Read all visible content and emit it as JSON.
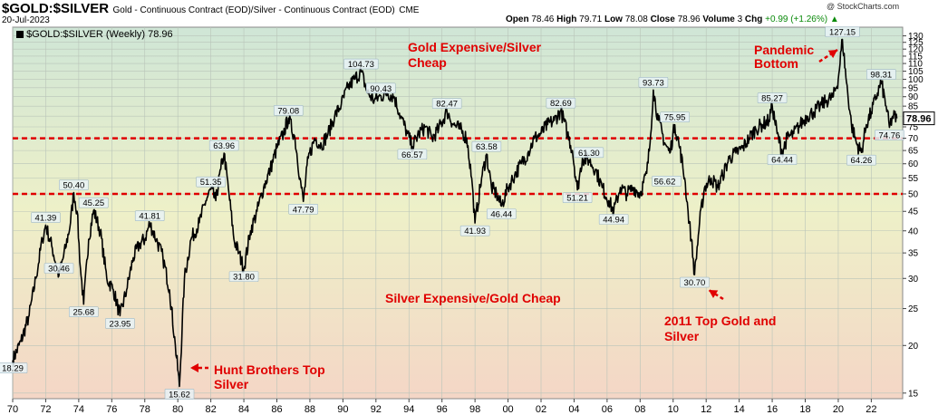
{
  "header": {
    "symbol": "$GOLD:$SILVER",
    "description": "Gold - Continuous Contract (EOD)/Silver - Continuous Contract (EOD)",
    "exchange": "CME",
    "date": "20-Jul-2023",
    "open_label": "Open",
    "open": "78.46",
    "high_label": "High",
    "high": "79.71",
    "low_label": "Low",
    "low": "78.08",
    "close_label": "Close",
    "close": "78.96",
    "volume_label": "Volume",
    "volume": "3",
    "chg_label": "Chg",
    "chg": "+0.99 (+1.26%)",
    "chg_arrow": "▲",
    "watermark": "@ StockCharts.com"
  },
  "legend": {
    "label": "$GOLD:$SILVER (Weekly) 78.96"
  },
  "colors": {
    "price_line": "#000000",
    "reference_line": "#e00000",
    "annotation_text": "#e00000",
    "bg_top": "#cfe6d6",
    "bg_mid": "#eef0c8",
    "bg_bottom": "#f4d6c6",
    "last_price_box": "#ffffff"
  },
  "chart_data": {
    "type": "line",
    "title": "$GOLD:$SILVER (Weekly) 78.96",
    "y_scale": "log",
    "ylim": [
      14.5,
      137
    ],
    "xlim": [
      1970.0,
      2023.9
    ],
    "x_tick_labels": [
      "70",
      "72",
      "74",
      "76",
      "78",
      "80",
      "82",
      "84",
      "86",
      "88",
      "90",
      "92",
      "94",
      "96",
      "98",
      "00",
      "02",
      "04",
      "06",
      "08",
      "10",
      "12",
      "14",
      "16",
      "18",
      "20",
      "22"
    ],
    "x_tick_years": [
      1970,
      1972,
      1974,
      1976,
      1978,
      1980,
      1982,
      1984,
      1986,
      1988,
      1990,
      1992,
      1994,
      1996,
      1998,
      2000,
      2002,
      2004,
      2006,
      2008,
      2010,
      2012,
      2014,
      2016,
      2018,
      2020,
      2022
    ],
    "y_ticks": [
      15,
      20,
      25,
      30,
      35,
      40,
      45,
      50,
      55,
      60,
      65,
      70,
      75,
      80,
      85,
      90,
      95,
      100,
      105,
      110,
      115,
      120,
      125,
      130
    ],
    "last_value": "78.96",
    "series": [
      {
        "name": "$GOLD:$SILVER",
        "points": [
          [
            1970.0,
            18.29
          ],
          [
            1970.5,
            20.5
          ],
          [
            1971.0,
            24.0
          ],
          [
            1971.4,
            30.0
          ],
          [
            1971.8,
            38.0
          ],
          [
            1972.0,
            41.39
          ],
          [
            1972.4,
            36.0
          ],
          [
            1972.8,
            30.46
          ],
          [
            1973.2,
            36.0
          ],
          [
            1973.5,
            42.0
          ],
          [
            1973.7,
            50.4
          ],
          [
            1973.9,
            45.0
          ],
          [
            1974.1,
            32.0
          ],
          [
            1974.3,
            25.68
          ],
          [
            1974.6,
            38.0
          ],
          [
            1974.9,
            45.25
          ],
          [
            1975.3,
            40.0
          ],
          [
            1975.7,
            30.0
          ],
          [
            1976.1,
            28.0
          ],
          [
            1976.5,
            23.95
          ],
          [
            1976.9,
            28.0
          ],
          [
            1977.3,
            34.0
          ],
          [
            1977.7,
            37.0
          ],
          [
            1978.0,
            38.0
          ],
          [
            1978.3,
            41.81
          ],
          [
            1978.7,
            38.0
          ],
          [
            1979.1,
            34.0
          ],
          [
            1979.5,
            28.0
          ],
          [
            1979.85,
            20.0
          ],
          [
            1980.1,
            15.62
          ],
          [
            1980.4,
            30.0
          ],
          [
            1980.8,
            38.0
          ],
          [
            1981.3,
            42.0
          ],
          [
            1981.7,
            48.0
          ],
          [
            1982.0,
            51.35
          ],
          [
            1982.3,
            48.0
          ],
          [
            1982.6,
            58.0
          ],
          [
            1982.8,
            63.96
          ],
          [
            1983.1,
            50.0
          ],
          [
            1983.4,
            38.0
          ],
          [
            1983.7,
            35.0
          ],
          [
            1984.0,
            31.8
          ],
          [
            1984.4,
            40.0
          ],
          [
            1984.8,
            45.0
          ],
          [
            1985.2,
            52.0
          ],
          [
            1985.6,
            58.0
          ],
          [
            1986.0,
            66.0
          ],
          [
            1986.4,
            72.0
          ],
          [
            1986.7,
            79.08
          ],
          [
            1987.1,
            70.0
          ],
          [
            1987.4,
            55.0
          ],
          [
            1987.6,
            47.79
          ],
          [
            1987.9,
            62.0
          ],
          [
            1988.3,
            70.0
          ],
          [
            1988.7,
            67.0
          ],
          [
            1989.1,
            72.0
          ],
          [
            1989.5,
            80.0
          ],
          [
            1989.9,
            86.0
          ],
          [
            1990.3,
            95.0
          ],
          [
            1990.7,
            100.0
          ],
          [
            1991.1,
            104.73
          ],
          [
            1991.5,
            92.0
          ],
          [
            1991.9,
            88.0
          ],
          [
            1992.3,
            90.43
          ],
          [
            1992.7,
            92.0
          ],
          [
            1993.1,
            90.0
          ],
          [
            1993.5,
            80.0
          ],
          [
            1993.9,
            72.0
          ],
          [
            1994.2,
            66.57
          ],
          [
            1994.6,
            72.0
          ],
          [
            1995.0,
            75.0
          ],
          [
            1995.4,
            70.0
          ],
          [
            1995.8,
            74.0
          ],
          [
            1996.3,
            82.47
          ],
          [
            1996.7,
            76.0
          ],
          [
            1997.1,
            74.0
          ],
          [
            1997.5,
            70.0
          ],
          [
            1997.8,
            55.0
          ],
          [
            1998.0,
            41.93
          ],
          [
            1998.4,
            55.0
          ],
          [
            1998.7,
            63.58
          ],
          [
            1999.0,
            52.0
          ],
          [
            1999.3,
            50.0
          ],
          [
            1999.6,
            46.44
          ],
          [
            2000.0,
            52.0
          ],
          [
            2000.4,
            56.0
          ],
          [
            2000.8,
            60.0
          ],
          [
            2001.2,
            64.0
          ],
          [
            2001.6,
            70.0
          ],
          [
            2002.0,
            72.0
          ],
          [
            2002.4,
            76.0
          ],
          [
            2002.8,
            78.0
          ],
          [
            2003.2,
            82.69
          ],
          [
            2003.6,
            72.0
          ],
          [
            2003.9,
            65.0
          ],
          [
            2004.2,
            51.21
          ],
          [
            2004.5,
            62.0
          ],
          [
            2004.9,
            61.3
          ],
          [
            2005.3,
            58.0
          ],
          [
            2005.7,
            52.0
          ],
          [
            2006.1,
            48.0
          ],
          [
            2006.4,
            44.94
          ],
          [
            2006.8,
            52.0
          ],
          [
            2007.2,
            50.0
          ],
          [
            2007.6,
            52.0
          ],
          [
            2008.0,
            50.0
          ],
          [
            2008.4,
            56.62
          ],
          [
            2008.6,
            68.0
          ],
          [
            2008.8,
            93.73
          ],
          [
            2009.1,
            78.0
          ],
          [
            2009.5,
            68.0
          ],
          [
            2009.8,
            64.0
          ],
          [
            2010.1,
            75.95
          ],
          [
            2010.4,
            66.0
          ],
          [
            2010.7,
            55.0
          ],
          [
            2010.9,
            45.0
          ],
          [
            2011.1,
            38.0
          ],
          [
            2011.3,
            30.7
          ],
          [
            2011.6,
            42.0
          ],
          [
            2011.9,
            52.0
          ],
          [
            2012.3,
            55.0
          ],
          [
            2012.7,
            52.0
          ],
          [
            2013.0,
            56.0
          ],
          [
            2013.4,
            62.0
          ],
          [
            2013.8,
            64.0
          ],
          [
            2014.2,
            66.0
          ],
          [
            2014.6,
            70.0
          ],
          [
            2015.0,
            74.0
          ],
          [
            2015.4,
            76.0
          ],
          [
            2015.8,
            78.0
          ],
          [
            2016.0,
            85.27
          ],
          [
            2016.3,
            72.0
          ],
          [
            2016.6,
            64.44
          ],
          [
            2016.9,
            70.0
          ],
          [
            2017.3,
            72.0
          ],
          [
            2017.7,
            76.0
          ],
          [
            2018.1,
            80.0
          ],
          [
            2018.5,
            82.0
          ],
          [
            2018.9,
            85.0
          ],
          [
            2019.3,
            88.0
          ],
          [
            2019.7,
            90.0
          ],
          [
            2020.0,
            100.0
          ],
          [
            2020.25,
            127.15
          ],
          [
            2020.5,
            98.0
          ],
          [
            2020.8,
            76.0
          ],
          [
            2021.1,
            68.0
          ],
          [
            2021.4,
            64.26
          ],
          [
            2021.7,
            76.0
          ],
          [
            2022.0,
            82.0
          ],
          [
            2022.3,
            90.0
          ],
          [
            2022.6,
            98.31
          ],
          [
            2022.9,
            85.0
          ],
          [
            2023.1,
            74.76
          ],
          [
            2023.3,
            80.0
          ],
          [
            2023.55,
            78.96
          ]
        ]
      }
    ],
    "value_labels": [
      {
        "x": 1970.0,
        "y": 18.29,
        "text": "18.29",
        "pos": "below"
      },
      {
        "x": 1972.0,
        "y": 41.39,
        "text": "41.39",
        "pos": "above"
      },
      {
        "x": 1972.8,
        "y": 30.46,
        "text": "30.46",
        "pos": "above"
      },
      {
        "x": 1973.7,
        "y": 50.4,
        "text": "50.40",
        "pos": "above"
      },
      {
        "x": 1974.3,
        "y": 25.68,
        "text": "25.68",
        "pos": "below"
      },
      {
        "x": 1974.9,
        "y": 45.25,
        "text": "45.25",
        "pos": "above"
      },
      {
        "x": 1976.5,
        "y": 23.95,
        "text": "23.95",
        "pos": "below"
      },
      {
        "x": 1978.3,
        "y": 41.81,
        "text": "41.81",
        "pos": "above"
      },
      {
        "x": 1980.1,
        "y": 15.62,
        "text": "15.62",
        "pos": "below"
      },
      {
        "x": 1982.0,
        "y": 51.35,
        "text": "51.35",
        "pos": "above"
      },
      {
        "x": 1982.8,
        "y": 63.96,
        "text": "63.96",
        "pos": "above"
      },
      {
        "x": 1984.0,
        "y": 31.8,
        "text": "31.80",
        "pos": "below"
      },
      {
        "x": 1986.7,
        "y": 79.08,
        "text": "79.08",
        "pos": "above"
      },
      {
        "x": 1987.6,
        "y": 47.79,
        "text": "47.79",
        "pos": "below"
      },
      {
        "x": 1991.1,
        "y": 104.73,
        "text": "104.73",
        "pos": "above"
      },
      {
        "x": 1992.3,
        "y": 90.43,
        "text": "90.43",
        "pos": "above"
      },
      {
        "x": 1994.2,
        "y": 66.57,
        "text": "66.57",
        "pos": "below"
      },
      {
        "x": 1996.3,
        "y": 82.47,
        "text": "82.47",
        "pos": "above"
      },
      {
        "x": 1998.0,
        "y": 41.93,
        "text": "41.93",
        "pos": "below"
      },
      {
        "x": 1998.7,
        "y": 63.58,
        "text": "63.58",
        "pos": "above"
      },
      {
        "x": 1999.6,
        "y": 46.44,
        "text": "46.44",
        "pos": "below"
      },
      {
        "x": 2003.2,
        "y": 82.69,
        "text": "82.69",
        "pos": "above"
      },
      {
        "x": 2004.2,
        "y": 51.21,
        "text": "51.21",
        "pos": "below"
      },
      {
        "x": 2004.9,
        "y": 61.3,
        "text": "61.30",
        "pos": "above"
      },
      {
        "x": 2006.4,
        "y": 44.94,
        "text": "44.94",
        "pos": "below"
      },
      {
        "x": 2008.4,
        "y": 56.62,
        "text": "56.62",
        "pos": "belowright"
      },
      {
        "x": 2008.8,
        "y": 93.73,
        "text": "93.73",
        "pos": "above"
      },
      {
        "x": 2010.1,
        "y": 75.95,
        "text": "75.95",
        "pos": "above"
      },
      {
        "x": 2011.3,
        "y": 30.7,
        "text": "30.70",
        "pos": "below"
      },
      {
        "x": 2016.0,
        "y": 85.27,
        "text": "85.27",
        "pos": "above"
      },
      {
        "x": 2016.6,
        "y": 64.44,
        "text": "64.44",
        "pos": "below"
      },
      {
        "x": 2020.25,
        "y": 127.15,
        "text": "127.15",
        "pos": "above"
      },
      {
        "x": 2021.4,
        "y": 64.26,
        "text": "64.26",
        "pos": "below"
      },
      {
        "x": 2022.6,
        "y": 98.31,
        "text": "98.31",
        "pos": "above"
      },
      {
        "x": 2023.1,
        "y": 74.76,
        "text": "74.76",
        "pos": "below"
      }
    ],
    "reference_lines": [
      {
        "y": 70,
        "style": "dashed"
      },
      {
        "y": 50,
        "style": "dashed"
      }
    ],
    "annotations": [
      {
        "lines": [
          "Gold Expensive/Silver",
          "Cheap"
        ]
      },
      {
        "lines": [
          "Silver Expensive/Gold Cheap"
        ]
      },
      {
        "lines": [
          "Hunt Brothers Top",
          "Silver"
        ]
      },
      {
        "lines": [
          "2011 Top Gold and",
          "Silver"
        ]
      },
      {
        "lines": [
          "Pandemic",
          "Bottom"
        ]
      }
    ]
  }
}
